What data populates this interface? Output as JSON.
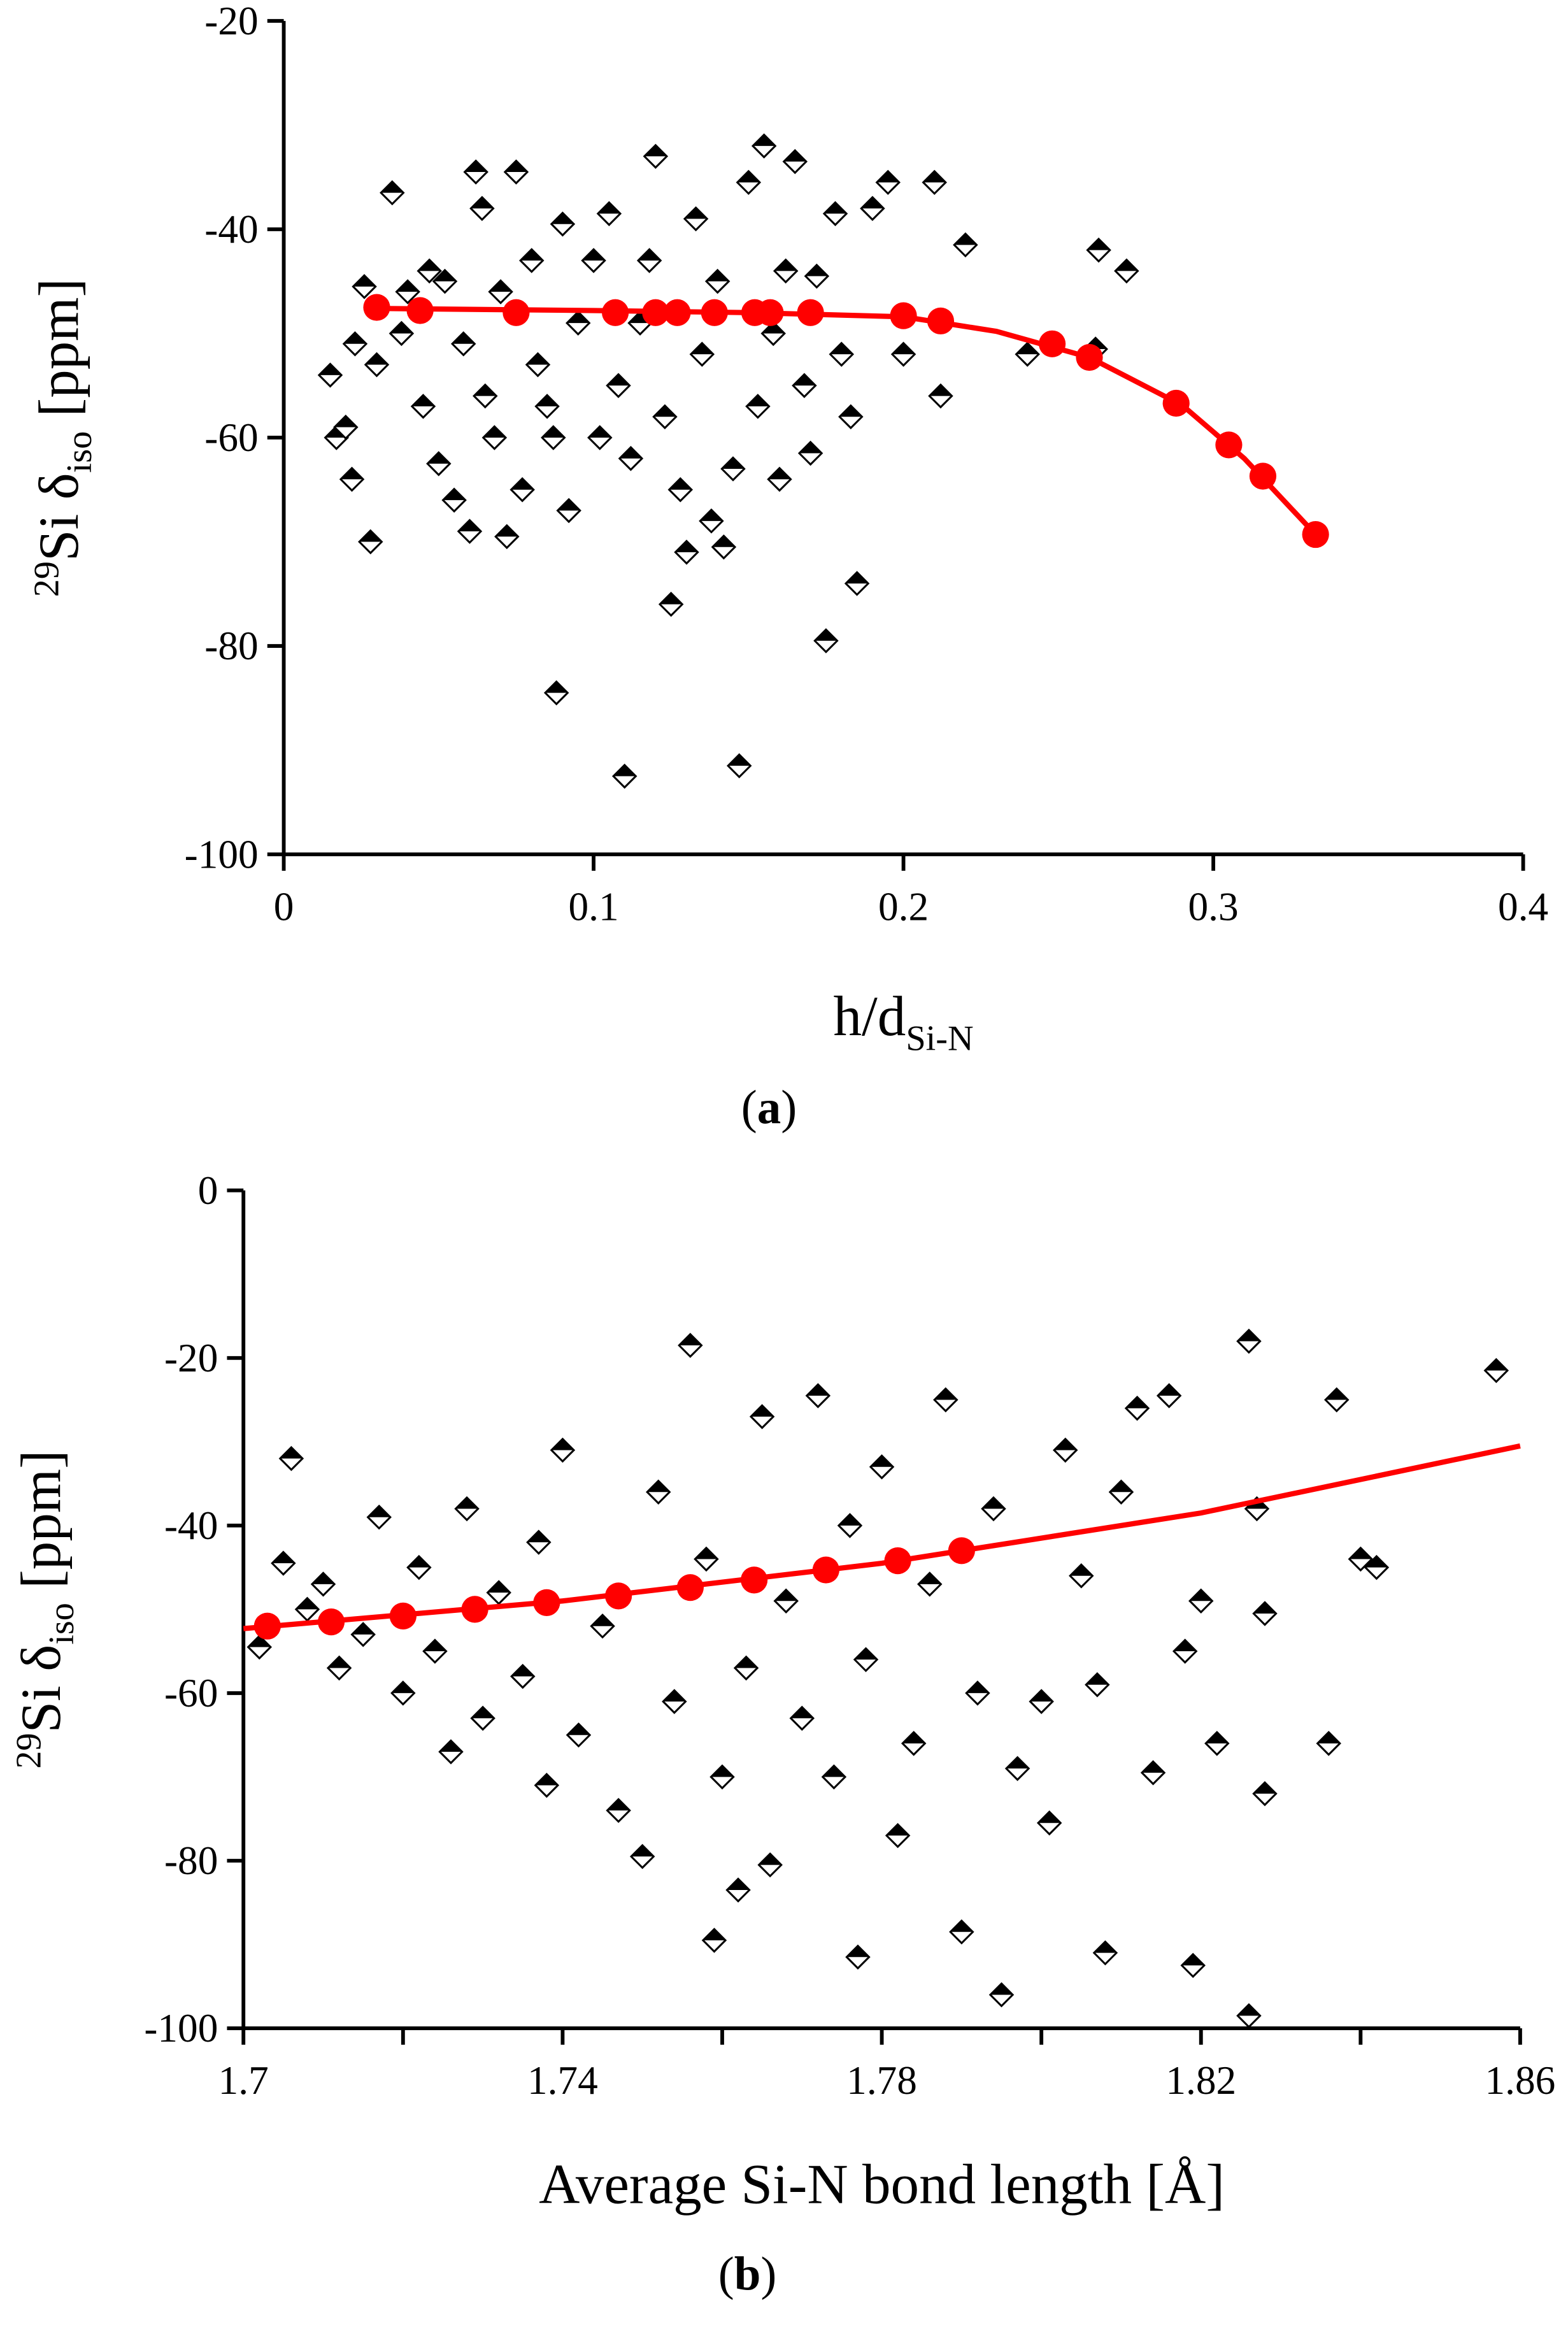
{
  "chart_data": [
    {
      "type": "scatter",
      "xlabel": [
        "h/d",
        "Si-N"
      ],
      "ylabel": [
        "29",
        "Si δ",
        "iso",
        " [ppm]"
      ],
      "caption": [
        "(",
        "a",
        ")"
      ],
      "xlim": [
        0,
        0.4
      ],
      "xticks": [
        0,
        0.1,
        0.2,
        0.3,
        0.4
      ],
      "ylim": [
        -100,
        -20
      ],
      "yticks": [
        -100,
        -80,
        -60,
        -40,
        -20
      ],
      "series": [
        {
          "mode": "markers",
          "color": "#000000",
          "x": [
            0.015,
            0.017,
            0.02,
            0.022,
            0.023,
            0.026,
            0.028,
            0.03,
            0.035,
            0.038,
            0.04,
            0.045,
            0.047,
            0.05,
            0.052,
            0.055,
            0.058,
            0.06,
            0.062,
            0.064,
            0.065,
            0.068,
            0.07,
            0.072,
            0.075,
            0.077,
            0.08,
            0.082,
            0.085,
            0.087,
            0.088,
            0.09,
            0.092,
            0.095,
            0.1,
            0.102,
            0.105,
            0.108,
            0.11,
            0.112,
            0.115,
            0.118,
            0.12,
            0.123,
            0.125,
            0.128,
            0.13,
            0.133,
            0.135,
            0.138,
            0.14,
            0.142,
            0.145,
            0.147,
            0.15,
            0.153,
            0.155,
            0.158,
            0.16,
            0.162,
            0.165,
            0.168,
            0.17,
            0.172,
            0.175,
            0.178,
            0.18,
            0.183,
            0.185,
            0.19,
            0.195,
            0.2,
            0.21,
            0.212,
            0.22,
            0.24,
            0.262,
            0.263,
            0.272
          ],
          "values": [
            -54,
            -60,
            -59,
            -64,
            -51,
            -45.5,
            -70,
            -53,
            -36.5,
            -50,
            -46,
            -57,
            -44,
            -62.5,
            -45,
            -66,
            -51,
            -69,
            -34.5,
            -38,
            -56,
            -60,
            -46,
            -69.5,
            -34.5,
            -65,
            -43,
            -53,
            -57,
            -60,
            -84.5,
            -39.5,
            -67,
            -49,
            -43,
            -60,
            -38.5,
            -55,
            -92.5,
            -62,
            -49,
            -43,
            -33,
            -58,
            -76,
            -65,
            -71,
            -39,
            -52,
            -68,
            -45,
            -70.5,
            -63,
            -91.5,
            -35.5,
            -57,
            -32,
            -50,
            -64,
            -44,
            -33.5,
            -55,
            -61.5,
            -44.5,
            -79.5,
            -38.5,
            -52,
            -58,
            -74,
            -38,
            -35.5,
            -52,
            -35.5,
            -56,
            -41.5,
            -52,
            -51.5,
            -42,
            -44
          ]
        },
        {
          "mode": "markers",
          "color": "#ff0000",
          "x": [
            0.03,
            0.044,
            0.075,
            0.107,
            0.12,
            0.127,
            0.139,
            0.152,
            0.157,
            0.17,
            0.2,
            0.212,
            0.248,
            0.26,
            0.288,
            0.305,
            0.316,
            0.333
          ],
          "values": [
            -47.5,
            -47.8,
            -48,
            -48,
            -48,
            -48,
            -48,
            -48,
            -48,
            -48,
            -48.3,
            -48.8,
            -51,
            -52.3,
            -56.7,
            -60.7,
            -63.7,
            -69.3
          ]
        },
        {
          "mode": "line",
          "color": "#ff0000",
          "x": [
            0.03,
            0.1,
            0.15,
            0.2,
            0.23,
            0.26,
            0.29,
            0.31,
            0.333
          ],
          "values": [
            -47.6,
            -47.8,
            -48,
            -48.4,
            -49.8,
            -52.3,
            -56.9,
            -62,
            -69.3
          ]
        }
      ]
    },
    {
      "type": "scatter",
      "xlabel": [
        "Average Si-N bond length [Å]"
      ],
      "ylabel": [
        "29",
        "Si δ",
        "iso",
        "  [ppm]"
      ],
      "caption": [
        "(",
        "b",
        ")"
      ],
      "xlim": [
        1.7,
        1.86
      ],
      "xticks": [
        1.7,
        1.74,
        1.78,
        1.82,
        1.86
      ],
      "xminor": [
        1.72,
        1.76,
        1.8,
        1.84
      ],
      "ylim": [
        -100,
        0
      ],
      "yticks": [
        -100,
        -80,
        -60,
        -40,
        -20,
        0
      ],
      "series": [
        {
          "mode": "markers",
          "color": "#000000",
          "x": [
            1.702,
            1.705,
            1.706,
            1.708,
            1.71,
            1.712,
            1.715,
            1.717,
            1.72,
            1.722,
            1.724,
            1.726,
            1.728,
            1.73,
            1.732,
            1.735,
            1.737,
            1.738,
            1.74,
            1.742,
            1.745,
            1.747,
            1.75,
            1.752,
            1.754,
            1.756,
            1.758,
            1.759,
            1.76,
            1.762,
            1.763,
            1.765,
            1.766,
            1.768,
            1.77,
            1.772,
            1.774,
            1.776,
            1.777,
            1.778,
            1.78,
            1.782,
            1.784,
            1.786,
            1.788,
            1.79,
            1.792,
            1.794,
            1.795,
            1.797,
            1.8,
            1.801,
            1.803,
            1.805,
            1.807,
            1.808,
            1.81,
            1.812,
            1.814,
            1.816,
            1.818,
            1.819,
            1.82,
            1.822,
            1.826,
            1.826,
            1.827,
            1.828,
            1.828,
            1.836,
            1.837,
            1.84,
            1.842,
            1.857
          ],
          "values": [
            -54.5,
            -44.5,
            -32,
            -50,
            -47,
            -57,
            -53,
            -39,
            -60,
            -45,
            -55,
            -67,
            -38,
            -63,
            -48,
            -58,
            -42,
            -71,
            -31,
            -65,
            -52,
            -74,
            -79.5,
            -36,
            -61,
            -18.5,
            -44,
            -89.5,
            -70,
            -83.5,
            -57,
            -27,
            -80.5,
            -49,
            -63,
            -24.5,
            -70,
            -40,
            -91.5,
            -56,
            -33,
            -77,
            -66,
            -47,
            -25,
            -88.5,
            -60,
            -38,
            -96,
            -69,
            -61,
            -75.5,
            -31,
            -46,
            -59,
            -91,
            -36,
            -26,
            -69.5,
            -24.5,
            -55,
            -92.5,
            -49,
            -66,
            -18,
            -98.5,
            -38,
            -50.5,
            -72,
            -66,
            -25,
            -44,
            -45,
            -21.5
          ]
        },
        {
          "mode": "markers",
          "color": "#ff0000",
          "x": [
            1.703,
            1.711,
            1.72,
            1.729,
            1.738,
            1.747,
            1.756,
            1.764,
            1.773,
            1.782,
            1.79
          ],
          "values": [
            -52,
            -51.5,
            -50.8,
            -50,
            -49.2,
            -48.4,
            -47.4,
            -46.5,
            -45.3,
            -44.2,
            -43
          ]
        },
        {
          "mode": "line",
          "color": "#ff0000",
          "x": [
            1.7,
            1.74,
            1.78,
            1.82,
            1.86
          ],
          "values": [
            -52.3,
            -49,
            -44.5,
            -38.5,
            -30.5
          ]
        }
      ]
    }
  ]
}
